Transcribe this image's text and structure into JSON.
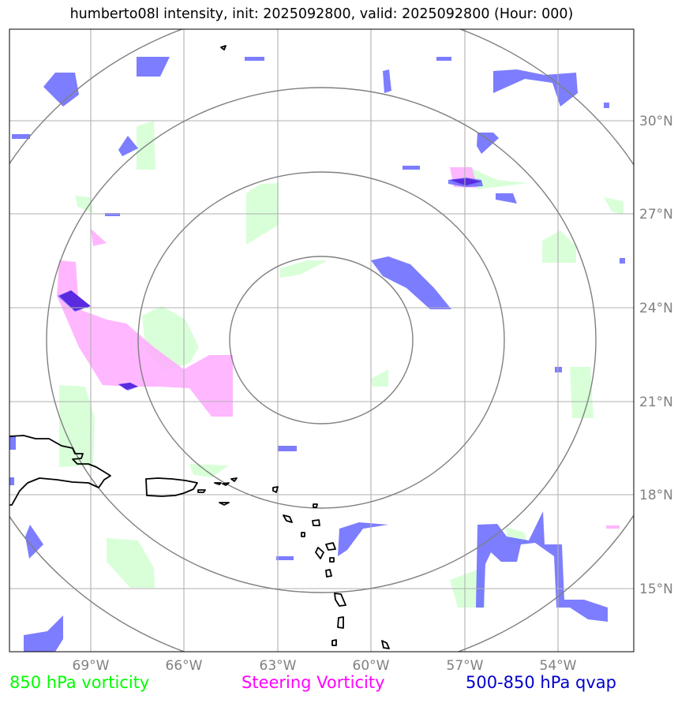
{
  "title": "humberto08l intensity, init: 2025092800, valid: 2025092800 (Hour: 000)",
  "map": {
    "lat_labels": [
      "30°N",
      "27°N",
      "24°N",
      "21°N",
      "18°N",
      "15°N"
    ],
    "lon_labels": [
      "69°W",
      "66°W",
      "63°W",
      "60°W",
      "57°W",
      "54°W"
    ],
    "range_rings": 4
  },
  "legend": {
    "vorticity": {
      "label": "850 hPa vorticity",
      "color": "#00ff00"
    },
    "steering": {
      "label": "Steering Vorticity",
      "color": "#ff00ff"
    },
    "qvap": {
      "label": "500-850 hPa qvap",
      "color": "#0000cc"
    }
  },
  "colors": {
    "vort_fill": "#ccffcc",
    "steer_fill": "#ffaaff",
    "qvap_fill": "#6666ff",
    "grid": "#b0b0b0",
    "ring": "#808080"
  }
}
